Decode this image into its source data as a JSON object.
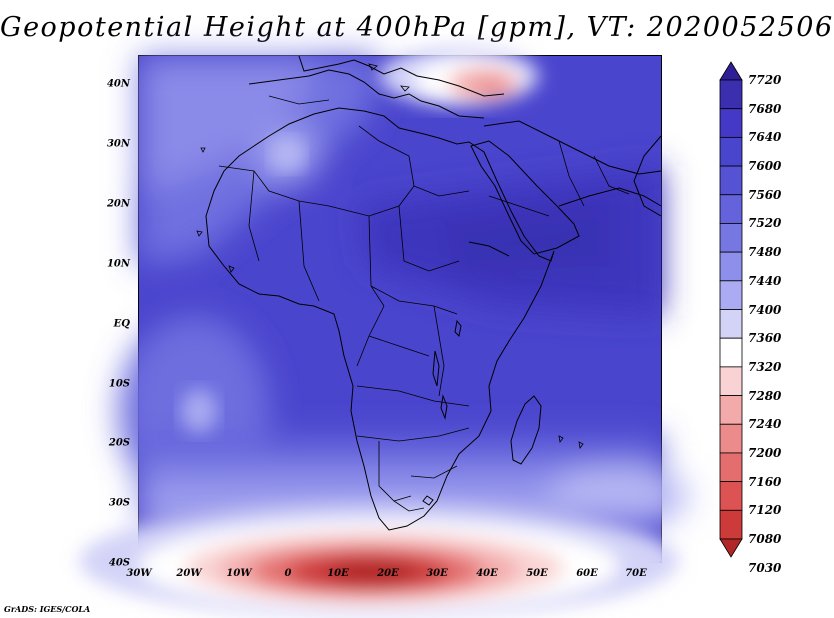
{
  "title": "Geopotential Height at 400hPa [gpm], VT: 2020052506",
  "lat_labels": [
    "40N",
    "30N",
    "20N",
    "10N",
    "EQ",
    "10S",
    "20S",
    "30S",
    "40S"
  ],
  "lon_labels": [
    "30W",
    "20W",
    "10W",
    "0",
    "10E",
    "20E",
    "30E",
    "40E",
    "50E",
    "60E",
    "70E"
  ],
  "colorbar": {
    "levels": [
      "7720",
      "7680",
      "7640",
      "7600",
      "7560",
      "7520",
      "7480",
      "7440",
      "7400",
      "7360",
      "7320",
      "7280",
      "7240",
      "7200",
      "7160",
      "7120",
      "7080",
      "7030"
    ],
    "colors": [
      "#2e1f96",
      "#3b2fb0",
      "#4339c6",
      "#4a45cd",
      "#5552d4",
      "#6463db",
      "#7777e2",
      "#8e8fea",
      "#aaabf2",
      "#d3d3f8",
      "#ffffff",
      "#f9d3d3",
      "#f3aaaa",
      "#ec8b8b",
      "#e46e6e",
      "#dd5252",
      "#cc3a3a",
      "#b12626"
    ],
    "units": "gpm"
  },
  "credit": "GrADS: IGES/COLA"
}
